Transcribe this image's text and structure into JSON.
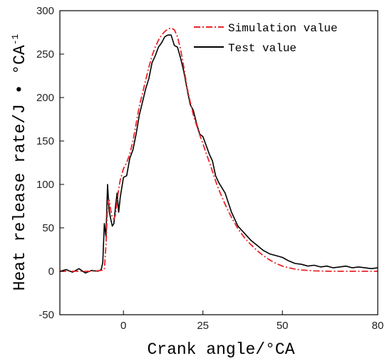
{
  "chart_data": {
    "type": "line",
    "title": "",
    "xlabel": "Crank angle/°CA",
    "ylabel": "Heat release rate/J • °CA",
    "ylabel_sup": "-1",
    "xlim": [
      -20,
      80
    ],
    "ylim": [
      -50,
      300
    ],
    "xticks": [
      0,
      25,
      50,
      80
    ],
    "yticks": [
      -50,
      0,
      50,
      100,
      150,
      200,
      250,
      300
    ],
    "grid": false,
    "legend_position": "top-right",
    "series": [
      {
        "name": "Simulation value",
        "color": "#e8262a",
        "style": "dash-dot",
        "x": [
          -20,
          -10,
          -7,
          -6,
          -5.5,
          -5,
          -4.5,
          -4,
          -3.5,
          -3,
          -2.5,
          -2,
          -1.5,
          -1,
          0,
          1,
          2,
          3,
          4,
          5,
          6,
          7,
          8,
          9,
          10,
          11,
          12,
          13,
          14,
          15,
          16,
          17,
          18,
          19,
          20,
          21,
          22,
          23,
          24,
          25,
          26,
          27,
          28,
          29,
          30,
          32,
          34,
          36,
          38,
          40,
          42,
          44,
          46,
          48,
          50,
          52,
          54,
          56,
          58,
          60,
          65,
          70,
          75,
          80
        ],
        "y": [
          0,
          0,
          1,
          2,
          30,
          75,
          82,
          70,
          62,
          60,
          65,
          80,
          95,
          105,
          118,
          125,
          135,
          150,
          170,
          190,
          205,
          220,
          235,
          248,
          258,
          266,
          272,
          276,
          279,
          280,
          278,
          270,
          255,
          235,
          212,
          195,
          180,
          168,
          157,
          147,
          136,
          126,
          115,
          104,
          94,
          77,
          62,
          49,
          39,
          31,
          24,
          18,
          13,
          9,
          6,
          4,
          2.5,
          1.5,
          1,
          0.5,
          0,
          0,
          0,
          0
        ]
      },
      {
        "name": "Test value",
        "color": "#000000",
        "style": "solid",
        "x": [
          -20,
          -18,
          -16,
          -14,
          -12,
          -10,
          -8,
          -7,
          -6.5,
          -6,
          -5.5,
          -5,
          -4.5,
          -4,
          -3.5,
          -3,
          -2.5,
          -2,
          -1.5,
          -1,
          0,
          1,
          2,
          3,
          4,
          5,
          6,
          7,
          8,
          9,
          10,
          11,
          12,
          13,
          14,
          15,
          16,
          17,
          18,
          19,
          20,
          21,
          22,
          23,
          24,
          25,
          26,
          27,
          28,
          29,
          30,
          32,
          34,
          36,
          38,
          40,
          42,
          44,
          46,
          48,
          50,
          52,
          54,
          56,
          58,
          60,
          62,
          64,
          66,
          68,
          70,
          72,
          74,
          76,
          78,
          80
        ],
        "y": [
          0,
          2,
          -1,
          3,
          -2,
          1,
          0,
          2,
          10,
          55,
          40,
          100,
          70,
          60,
          52,
          55,
          75,
          90,
          68,
          85,
          108,
          110,
          130,
          140,
          158,
          180,
          195,
          210,
          222,
          240,
          248,
          258,
          263,
          270,
          272,
          272,
          260,
          258,
          245,
          230,
          210,
          192,
          185,
          170,
          158,
          155,
          145,
          135,
          127,
          110,
          102,
          90,
          68,
          52,
          44,
          36,
          30,
          24,
          20,
          18,
          16,
          12,
          9,
          8,
          6,
          7,
          5,
          6,
          4,
          5,
          6,
          4,
          5,
          4,
          3,
          4
        ]
      }
    ]
  }
}
